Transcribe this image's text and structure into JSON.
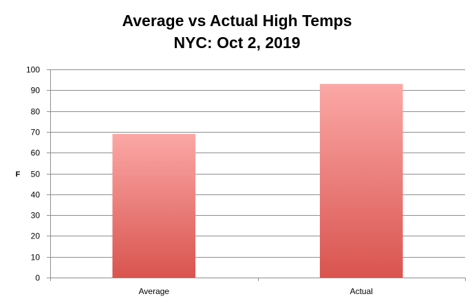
{
  "chart_data": {
    "type": "bar",
    "title": [
      "Average vs Actual High Temps",
      "NYC: Oct 2, 2019"
    ],
    "xlabel": "",
    "ylabel": "F",
    "categories": [
      "Average",
      "Actual"
    ],
    "values": [
      69,
      93
    ],
    "ylim": [
      0,
      100
    ],
    "yticks": [
      0,
      10,
      20,
      30,
      40,
      50,
      60,
      70,
      80,
      90,
      100
    ],
    "grid": true,
    "legend": "none",
    "colors": {
      "bar_top": "#fba8a6",
      "bar_bottom": "#d9544f",
      "grid": "#8c8c8c",
      "axis": "#8c8c8c",
      "text": "#000000"
    }
  }
}
